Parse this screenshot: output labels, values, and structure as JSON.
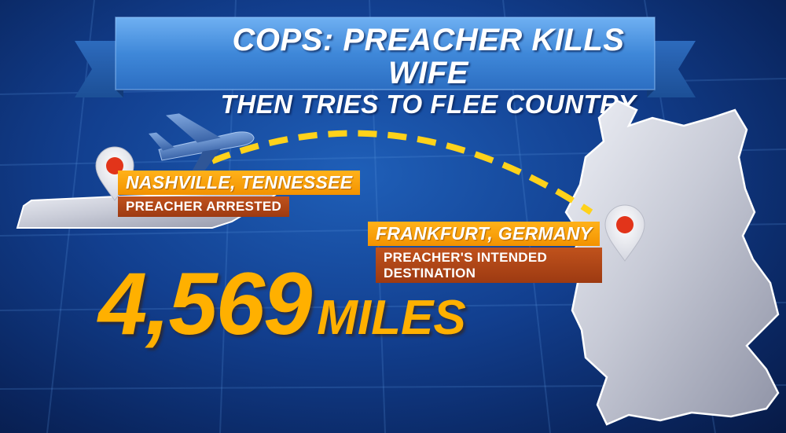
{
  "headline": {
    "line1": "COPS: PREACHER KILLS WIFE",
    "line2": "THEN TRIES TO FLEE COUNTRY"
  },
  "origin": {
    "name": "NASHVILLE, TENNESSEE",
    "caption": "PREACHER ARRESTED"
  },
  "destination": {
    "name": "FRANKFURT, GERMANY",
    "caption": "PREACHER'S INTENDED DESTINATION"
  },
  "distance": {
    "value": "4,569",
    "unit": "MILES"
  },
  "colors": {
    "accent_orange": "#f5a000",
    "caption_rust": "#b0461a",
    "banner_blue": "#3d86d8",
    "background_blue": "#123f8f",
    "pin_red": "#e2341a",
    "map_silver": "#c9ccd6",
    "route_yellow": "#ffd21a"
  },
  "icons": [
    "airplane-icon",
    "map-pin-icon",
    "tennessee-state-shape",
    "germany-country-shape"
  ]
}
